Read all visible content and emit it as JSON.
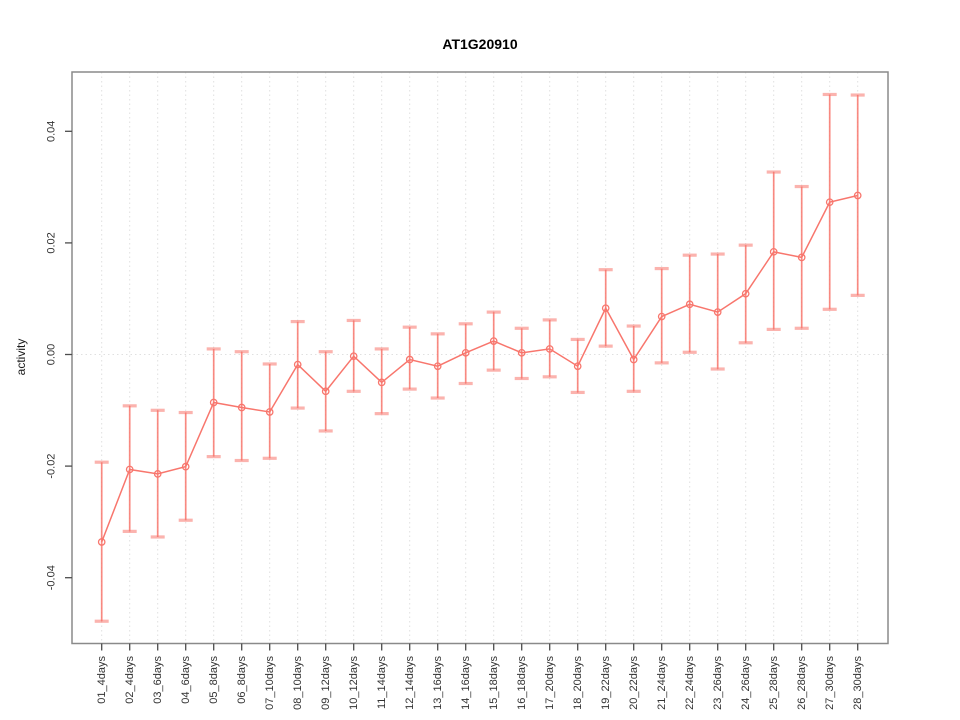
{
  "figure": {
    "title": "AT1G20910",
    "background": "#ffffff"
  },
  "chart_data": {
    "type": "line",
    "title": "AT1G20910",
    "xlabel": "",
    "ylabel": "activity",
    "legend": "none",
    "grid": "vertical dotted gridline per category; dotted horizontal line at y=0",
    "marker": "open-circle",
    "error_bars": true,
    "ylim": [
      -0.052,
      0.051
    ],
    "yticks": [
      -0.04,
      -0.02,
      0,
      0.02,
      0.04
    ],
    "ytick_labels": [
      "-0.04",
      "-0.02",
      "0.00",
      "0.02",
      "0.04"
    ],
    "categories": [
      "01_4days",
      "02_4days",
      "03_6days",
      "04_6days",
      "05_8days",
      "06_8days",
      "07_10days",
      "08_10days",
      "09_12days",
      "10_12days",
      "11_14days",
      "12_14days",
      "13_16days",
      "14_16days",
      "15_18days",
      "16_18days",
      "17_20days",
      "18_20days",
      "19_22days",
      "20_22days",
      "21_24days",
      "22_24days",
      "23_26days",
      "24_26days",
      "25_28days",
      "26_28days",
      "27_30days",
      "28_30days"
    ],
    "series": [
      {
        "name": "activity",
        "values": [
          -0.0336,
          -0.0206,
          -0.0214,
          -0.0201,
          -0.0086,
          -0.0095,
          -0.0103,
          -0.0018,
          -0.0066,
          -0.0003,
          -0.005,
          -0.0009,
          -0.0021,
          0.0003,
          0.0024,
          0.0003,
          0.001,
          -0.0021,
          0.0083,
          -0.0009,
          0.0068,
          0.009,
          0.0076,
          0.0109,
          0.0184,
          0.0174,
          0.0273,
          0.0285
        ],
        "lower": [
          -0.0478,
          -0.0317,
          -0.0327,
          -0.0297,
          -0.0183,
          -0.019,
          -0.0186,
          -0.0096,
          -0.0137,
          -0.0066,
          -0.0106,
          -0.0062,
          -0.0078,
          -0.0052,
          -0.0028,
          -0.0043,
          -0.004,
          -0.0068,
          0.0015,
          -0.0066,
          -0.0015,
          0.0004,
          -0.0026,
          0.0021,
          0.0045,
          0.0047,
          0.0081,
          0.0106
        ],
        "upper": [
          -0.0193,
          -0.0092,
          -0.01,
          -0.0104,
          0.001,
          0.0005,
          -0.0017,
          0.0059,
          0.0005,
          0.0061,
          0.001,
          0.0049,
          0.0037,
          0.0055,
          0.0076,
          0.0047,
          0.0062,
          0.0027,
          0.0152,
          0.0051,
          0.0154,
          0.0178,
          0.018,
          0.0196,
          0.0327,
          0.0301,
          0.0466,
          0.0465
        ]
      }
    ],
    "colors": {
      "series": "#F8766D",
      "grid": "#E0E0E0",
      "box": "#8A8A8A",
      "tick": "#4D4D4D",
      "label": "#333333"
    }
  }
}
